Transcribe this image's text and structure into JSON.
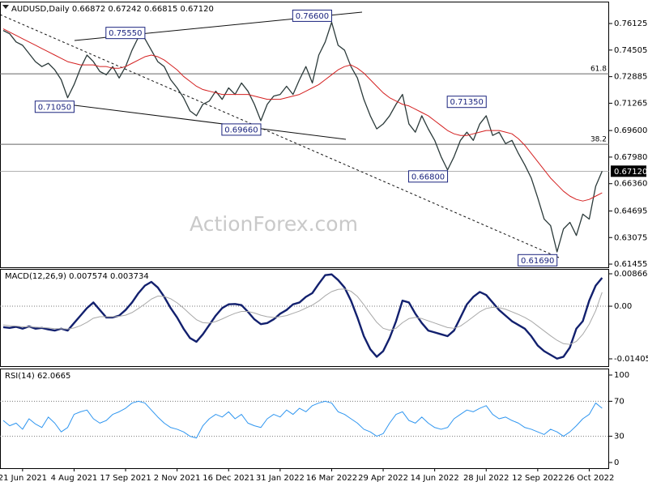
{
  "chart_data": [
    {
      "type": "line",
      "title": "AUDUSD,Daily  0.66872 0.67242 0.66815 0.67120",
      "watermark": "ActionForex.com",
      "categories": [
        null,
        null,
        null,
        "21 Jun 2021",
        null,
        null,
        null,
        null,
        null,
        null,
        null,
        "4 Aug 2021",
        null,
        null,
        null,
        null,
        null,
        null,
        null,
        "17 Sep 2021",
        null,
        null,
        null,
        null,
        null,
        null,
        null,
        "2 Nov 2021",
        null,
        null,
        null,
        null,
        null,
        null,
        null,
        "16 Dec 2021",
        null,
        null,
        null,
        null,
        null,
        null,
        null,
        "31 Jan 2022",
        null,
        null,
        null,
        null,
        null,
        null,
        null,
        "16 Mar 2022",
        null,
        null,
        null,
        null,
        null,
        null,
        null,
        "29 Apr 2022",
        null,
        null,
        null,
        null,
        null,
        null,
        null,
        "14 Jun 2022",
        null,
        null,
        null,
        null,
        null,
        null,
        null,
        "28 Jul 2022",
        null,
        null,
        null,
        null,
        null,
        null,
        null,
        "12 Sep 2022",
        null,
        null,
        null,
        null,
        null,
        null,
        null,
        "26 Oct 2022",
        null,
        null
      ],
      "series": [
        {
          "name": "AUDUSD",
          "color": "#2b3a3a",
          "values": [
            0.757,
            0.755,
            0.75,
            0.748,
            0.743,
            0.738,
            0.735,
            0.737,
            0.733,
            0.727,
            0.716,
            0.724,
            0.734,
            0.742,
            0.738,
            0.732,
            0.73,
            0.735,
            0.728,
            0.735,
            0.745,
            0.753,
            0.752,
            0.745,
            0.738,
            0.735,
            0.727,
            0.722,
            0.716,
            0.708,
            0.705,
            0.712,
            0.714,
            0.72,
            0.715,
            0.722,
            0.718,
            0.725,
            0.72,
            0.712,
            0.702,
            0.712,
            0.717,
            0.718,
            0.723,
            0.718,
            0.727,
            0.735,
            0.725,
            0.742,
            0.75,
            0.762,
            0.748,
            0.745,
            0.735,
            0.728,
            0.715,
            0.705,
            0.697,
            0.7,
            0.705,
            0.712,
            0.718,
            0.7,
            0.695,
            0.705,
            0.697,
            0.69,
            0.68,
            0.672,
            0.68,
            0.69,
            0.695,
            0.69,
            0.7,
            0.705,
            0.693,
            0.695,
            0.688,
            0.69,
            0.682,
            0.675,
            0.667,
            0.655,
            0.642,
            0.638,
            0.622,
            0.636,
            0.64,
            0.632,
            0.645,
            0.642,
            0.662,
            0.6712
          ]
        },
        {
          "name": "MA",
          "color": "#d42020",
          "values": [
            0.758,
            0.756,
            0.754,
            0.752,
            0.75,
            0.748,
            0.746,
            0.744,
            0.742,
            0.74,
            0.738,
            0.737,
            0.736,
            0.736,
            0.736,
            0.735,
            0.735,
            0.734,
            0.734,
            0.735,
            0.737,
            0.739,
            0.741,
            0.742,
            0.741,
            0.739,
            0.736,
            0.733,
            0.729,
            0.726,
            0.723,
            0.721,
            0.72,
            0.719,
            0.718,
            0.718,
            0.718,
            0.718,
            0.718,
            0.717,
            0.716,
            0.715,
            0.715,
            0.715,
            0.716,
            0.717,
            0.718,
            0.72,
            0.722,
            0.724,
            0.727,
            0.73,
            0.733,
            0.735,
            0.736,
            0.734,
            0.731,
            0.727,
            0.723,
            0.719,
            0.716,
            0.714,
            0.712,
            0.711,
            0.709,
            0.707,
            0.705,
            0.702,
            0.699,
            0.696,
            0.694,
            0.693,
            0.693,
            0.694,
            0.695,
            0.696,
            0.696,
            0.696,
            0.695,
            0.694,
            0.691,
            0.687,
            0.682,
            0.677,
            0.672,
            0.667,
            0.663,
            0.659,
            0.656,
            0.654,
            0.653,
            0.654,
            0.656,
            0.658
          ]
        }
      ],
      "ylim": [
        0.6126,
        0.7746
      ],
      "yticks": [
        0.76125,
        0.74505,
        0.72885,
        0.71265,
        {
          "value": 0.696,
          "label": "0.69600"
        },
        {
          "value": 0.6798,
          "label": "0.67980"
        },
        {
          "value": 0.6636,
          "label": "0.66360"
        },
        0.64695,
        0.63075,
        0.61455
      ],
      "fib_levels": [
        {
          "level": 61.8,
          "price": 0.7306
        },
        {
          "level": 38.2,
          "price": 0.6876
        }
      ],
      "last_price": {
        "value": 0.6712,
        "label": "0.67120"
      },
      "annotations": [
        {
          "text": "0.75550",
          "value": 0.7555,
          "index": 22
        },
        {
          "text": "0.76600",
          "value": 0.766,
          "index": 51
        },
        {
          "text": "0.71050",
          "value": 0.7105,
          "index": 11
        },
        {
          "text": "0.69660",
          "value": 0.6966,
          "index": 40
        },
        {
          "text": "0.71350",
          "value": 0.7135,
          "index": 75
        },
        {
          "text": "0.66800",
          "value": 0.668,
          "index": 69
        },
        {
          "text": "0.61690",
          "value": 0.6169,
          "index": 86
        }
      ]
    },
    {
      "type": "line",
      "title": "MACD(12,26,9) 0.007574 0.003734",
      "series": [
        {
          "name": "MACD",
          "color": "#12206e",
          "values": [
            -0.0056,
            -0.0058,
            -0.0055,
            -0.006,
            -0.0054,
            -0.006,
            -0.0058,
            -0.0062,
            -0.0065,
            -0.006,
            -0.0065,
            -0.0045,
            -0.0025,
            -0.0005,
            0.001,
            -0.001,
            -0.003,
            -0.003,
            -0.0025,
            -0.001,
            0.001,
            0.0035,
            0.0055,
            0.0065,
            0.005,
            0.0025,
            -0.0005,
            -0.003,
            -0.006,
            -0.0085,
            -0.0095,
            -0.0075,
            -0.005,
            -0.0025,
            -0.0005,
            0.0005,
            0.0006,
            0.0003,
            -0.0015,
            -0.0035,
            -0.0048,
            -0.0045,
            -0.0035,
            -0.002,
            -0.001,
            0.0005,
            0.001,
            0.0025,
            0.0035,
            0.006,
            0.0083,
            0.0085,
            0.007,
            0.005,
            0.0015,
            -0.003,
            -0.008,
            -0.0115,
            -0.0135,
            -0.012,
            -0.0085,
            -0.004,
            0.0015,
            0.001,
            -0.002,
            -0.0045,
            -0.0065,
            -0.007,
            -0.0075,
            -0.008,
            -0.0065,
            -0.003,
            0.0005,
            0.0025,
            0.0038,
            0.003,
            0.001,
            -0.001,
            -0.0025,
            -0.004,
            -0.005,
            -0.006,
            -0.008,
            -0.0105,
            -0.012,
            -0.013,
            -0.014,
            -0.0135,
            -0.011,
            -0.006,
            -0.004,
            0.0015,
            0.0055,
            0.007574
          ]
        },
        {
          "name": "Signal",
          "color": "#a8a8a8",
          "values": [
            -0.005,
            -0.0052,
            -0.0053,
            -0.0055,
            -0.0055,
            -0.0056,
            -0.0057,
            -0.0058,
            -0.006,
            -0.006,
            -0.0061,
            -0.0058,
            -0.0052,
            -0.0043,
            -0.0032,
            -0.0028,
            -0.0028,
            -0.0028,
            -0.0027,
            -0.0024,
            -0.0017,
            -0.0006,
            0.0006,
            0.0019,
            0.0027,
            0.0026,
            0.002,
            0.0009,
            -0.0005,
            -0.0021,
            -0.0036,
            -0.0044,
            -0.0045,
            -0.0041,
            -0.0034,
            -0.0026,
            -0.0019,
            -0.0014,
            -0.0014,
            -0.0018,
            -0.0024,
            -0.0028,
            -0.003,
            -0.0028,
            -0.0025,
            -0.0019,
            -0.0013,
            -0.0005,
            0.0003,
            0.0014,
            0.0028,
            0.0039,
            0.0045,
            0.0046,
            0.004,
            0.0026,
            0.0004,
            -0.002,
            -0.0043,
            -0.0059,
            -0.0064,
            -0.0059,
            -0.0044,
            -0.0033,
            -0.003,
            -0.0033,
            -0.0039,
            -0.0045,
            -0.0051,
            -0.0057,
            -0.0059,
            -0.0053,
            -0.0041,
            -0.0028,
            -0.0015,
            -0.0006,
            -0.0003,
            -0.0004,
            -0.0008,
            -0.0015,
            -0.0022,
            -0.003,
            -0.004,
            -0.0053,
            -0.0066,
            -0.0079,
            -0.0091,
            -0.01,
            -0.0102,
            -0.0094,
            -0.0075,
            -0.0048,
            -0.0012,
            0.003734
          ]
        }
      ],
      "ylim": [
        -0.016,
        0.00996
      ],
      "yticks": [
        0.008662,
        {
          "value": 0,
          "label": "0.00"
        },
        -0.014055
      ],
      "dotted_levels": [
        0
      ]
    },
    {
      "type": "line",
      "title": "RSI(14) 62.0665",
      "series": [
        {
          "name": "RSI",
          "color": "#2f96f0",
          "values": [
            48,
            42,
            45,
            38,
            50,
            44,
            40,
            52,
            45,
            35,
            40,
            55,
            58,
            60,
            50,
            45,
            48,
            55,
            58,
            62,
            68,
            70,
            68,
            60,
            52,
            45,
            40,
            38,
            35,
            30,
            28,
            42,
            50,
            55,
            52,
            58,
            50,
            55,
            45,
            42,
            40,
            50,
            55,
            52,
            60,
            55,
            62,
            58,
            65,
            68,
            70,
            68,
            58,
            55,
            50,
            45,
            38,
            35,
            30,
            33,
            45,
            55,
            58,
            48,
            45,
            52,
            45,
            40,
            38,
            40,
            50,
            55,
            60,
            58,
            62,
            65,
            55,
            50,
            52,
            48,
            45,
            40,
            38,
            35,
            32,
            38,
            35,
            30,
            35,
            42,
            50,
            55,
            68,
            62.0665
          ]
        }
      ],
      "ylim": [
        -6.5,
        107.4
      ],
      "yticks": [
        0,
        30,
        70,
        100
      ],
      "dotted_levels": [
        30,
        70
      ]
    }
  ]
}
